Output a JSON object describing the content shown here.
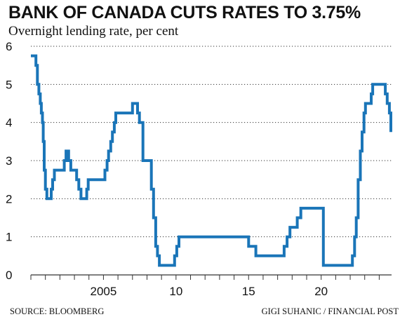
{
  "title": "BANK OF CANADA CUTS RATES TO 3.75%",
  "subtitle": "Overnight lending rate, per cent",
  "source": "SOURCE: BLOOMBERG",
  "credit": "GIGI SUHANIC / FINANCIAL POST",
  "colors": {
    "line": "#1a75b8",
    "grid": "#333333",
    "text": "#111111"
  },
  "chart_data": {
    "type": "line",
    "title": "BANK OF CANADA CUTS RATES TO 3.75%",
    "subtitle": "Overnight lending rate, per cent",
    "xlabel": "",
    "ylabel": "",
    "xlim": [
      2000.0,
      2024.85
    ],
    "ylim": [
      0,
      6
    ],
    "yticks": [
      0,
      1,
      2,
      3,
      4,
      5,
      6
    ],
    "xtick_labels": [
      {
        "x": 2005,
        "label": "2005"
      },
      {
        "x": 2010,
        "label": "10"
      },
      {
        "x": 2015,
        "label": "15"
      },
      {
        "x": 2020,
        "label": "20"
      }
    ],
    "grid": "horizontal dotted",
    "series": [
      {
        "points": [
          [
            2000.0,
            5.75
          ],
          [
            2000.35,
            5.75
          ],
          [
            2000.35,
            5.5
          ],
          [
            2000.45,
            5.5
          ],
          [
            2000.45,
            5.0
          ],
          [
            2000.55,
            5.0
          ],
          [
            2000.55,
            4.75
          ],
          [
            2000.65,
            4.75
          ],
          [
            2000.65,
            4.5
          ],
          [
            2000.72,
            4.5
          ],
          [
            2000.72,
            4.25
          ],
          [
            2000.8,
            4.25
          ],
          [
            2000.8,
            4.0
          ],
          [
            2000.85,
            4.0
          ],
          [
            2000.85,
            3.5
          ],
          [
            2000.92,
            3.5
          ],
          [
            2000.92,
            2.75
          ],
          [
            2001.0,
            2.75
          ],
          [
            2001.0,
            2.25
          ],
          [
            2001.1,
            2.25
          ],
          [
            2001.1,
            2.0
          ],
          [
            2001.4,
            2.0
          ],
          [
            2001.4,
            2.25
          ],
          [
            2001.5,
            2.25
          ],
          [
            2001.5,
            2.5
          ],
          [
            2001.62,
            2.5
          ],
          [
            2001.62,
            2.75
          ],
          [
            2002.3,
            2.75
          ],
          [
            2002.3,
            3.0
          ],
          [
            2002.42,
            3.0
          ],
          [
            2002.42,
            3.25
          ],
          [
            2002.6,
            3.25
          ],
          [
            2002.6,
            3.0
          ],
          [
            2002.75,
            3.0
          ],
          [
            2002.75,
            2.75
          ],
          [
            2003.15,
            2.75
          ],
          [
            2003.15,
            2.5
          ],
          [
            2003.3,
            2.5
          ],
          [
            2003.3,
            2.25
          ],
          [
            2003.45,
            2.25
          ],
          [
            2003.45,
            2.0
          ],
          [
            2003.85,
            2.0
          ],
          [
            2003.85,
            2.25
          ],
          [
            2003.95,
            2.25
          ],
          [
            2003.95,
            2.5
          ],
          [
            2005.1,
            2.5
          ],
          [
            2005.1,
            2.75
          ],
          [
            2005.25,
            2.75
          ],
          [
            2005.25,
            3.0
          ],
          [
            2005.35,
            3.0
          ],
          [
            2005.35,
            3.25
          ],
          [
            2005.5,
            3.25
          ],
          [
            2005.5,
            3.5
          ],
          [
            2005.62,
            3.5
          ],
          [
            2005.62,
            3.75
          ],
          [
            2005.75,
            3.75
          ],
          [
            2005.75,
            4.0
          ],
          [
            2005.85,
            4.0
          ],
          [
            2005.85,
            4.25
          ],
          [
            2007.0,
            4.25
          ],
          [
            2007.0,
            4.5
          ],
          [
            2007.35,
            4.5
          ],
          [
            2007.35,
            4.25
          ],
          [
            2007.48,
            4.25
          ],
          [
            2007.48,
            4.0
          ],
          [
            2007.72,
            4.0
          ],
          [
            2007.72,
            3.0
          ],
          [
            2008.3,
            3.0
          ],
          [
            2008.3,
            2.25
          ],
          [
            2008.45,
            2.25
          ],
          [
            2008.45,
            1.5
          ],
          [
            2008.6,
            1.5
          ],
          [
            2008.6,
            0.75
          ],
          [
            2008.72,
            0.75
          ],
          [
            2008.72,
            0.5
          ],
          [
            2008.85,
            0.5
          ],
          [
            2008.85,
            0.25
          ],
          [
            2009.9,
            0.25
          ],
          [
            2009.9,
            0.5
          ],
          [
            2010.05,
            0.5
          ],
          [
            2010.05,
            0.75
          ],
          [
            2010.2,
            0.75
          ],
          [
            2010.2,
            1.0
          ],
          [
            2015.0,
            1.0
          ],
          [
            2015.0,
            0.75
          ],
          [
            2015.5,
            0.75
          ],
          [
            2015.5,
            0.5
          ],
          [
            2017.45,
            0.5
          ],
          [
            2017.45,
            0.75
          ],
          [
            2017.65,
            0.75
          ],
          [
            2017.65,
            1.0
          ],
          [
            2017.85,
            1.0
          ],
          [
            2017.85,
            1.25
          ],
          [
            2018.35,
            1.25
          ],
          [
            2018.35,
            1.5
          ],
          [
            2018.6,
            1.5
          ],
          [
            2018.6,
            1.75
          ],
          [
            2020.15,
            1.75
          ],
          [
            2020.15,
            0.25
          ],
          [
            2022.15,
            0.25
          ],
          [
            2022.15,
            0.5
          ],
          [
            2022.3,
            0.5
          ],
          [
            2022.3,
            1.0
          ],
          [
            2022.42,
            1.0
          ],
          [
            2022.42,
            1.5
          ],
          [
            2022.55,
            1.5
          ],
          [
            2022.55,
            2.5
          ],
          [
            2022.7,
            2.5
          ],
          [
            2022.7,
            3.25
          ],
          [
            2022.82,
            3.25
          ],
          [
            2022.82,
            3.75
          ],
          [
            2022.95,
            3.75
          ],
          [
            2022.95,
            4.25
          ],
          [
            2023.05,
            4.25
          ],
          [
            2023.05,
            4.5
          ],
          [
            2023.45,
            4.5
          ],
          [
            2023.45,
            4.75
          ],
          [
            2023.55,
            4.75
          ],
          [
            2023.55,
            5.0
          ],
          [
            2024.42,
            5.0
          ],
          [
            2024.42,
            4.75
          ],
          [
            2024.55,
            4.75
          ],
          [
            2024.55,
            4.5
          ],
          [
            2024.7,
            4.5
          ],
          [
            2024.7,
            4.25
          ],
          [
            2024.8,
            4.25
          ],
          [
            2024.8,
            3.75
          ]
        ]
      }
    ]
  }
}
